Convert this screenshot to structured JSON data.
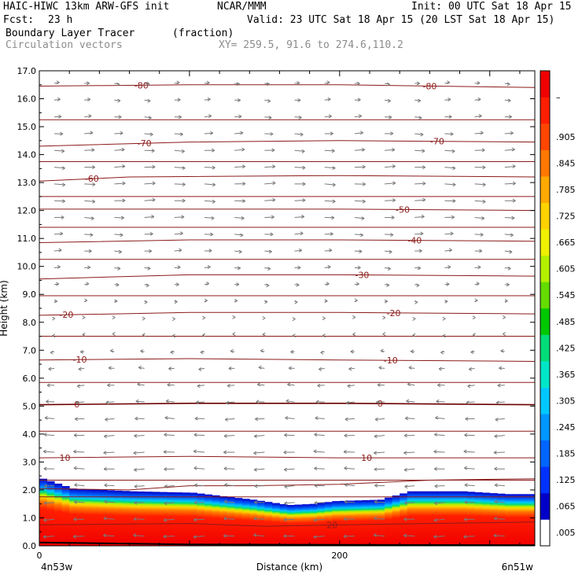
{
  "header": {
    "model": "HAIC-HIWC 13km ARW-GFS init",
    "org": "NCAR/MMM",
    "init": "Init: 00 UTC Sat 18 Apr 15",
    "fcst_label": "Fcst:",
    "fcst_value": "23 h",
    "valid": "Valid: 23 UTC Sat 18 Apr 15 (20 LST Sat 18 Apr 15)",
    "field": "Boundary Layer Tracer",
    "field_units": "(fraction)",
    "overlay": "Circulation vectors",
    "xy": "XY= 259.5, 91.6 to 274.6,110.2"
  },
  "chart_data": {
    "type": "heatmap",
    "xlabel": "Distance (km)",
    "ylabel": "Height (km)",
    "xlim": [
      0,
      330
    ],
    "ylim": [
      0,
      17
    ],
    "x_ticks": [
      {
        "value": 0,
        "label": "0"
      },
      {
        "value": 200,
        "label": "200"
      }
    ],
    "y_ticks": [
      "0.0",
      "1.0",
      "2.0",
      "3.0",
      "4.0",
      "5.0",
      "6.0",
      "7.0",
      "8.0",
      "9.0",
      "10.0",
      "11.0",
      "12.0",
      "13.0",
      "14.0",
      "15.0",
      "16.0",
      "17.0"
    ],
    "endpoint_labels": {
      "left": "4n53w",
      "right": "6n51w"
    },
    "colorbar": {
      "labels": [
        ".005",
        ".065",
        ".125",
        ".185",
        ".245",
        ".305",
        ".365",
        ".425",
        ".485",
        ".545",
        ".605",
        ".665",
        ".725",
        ".785",
        ".845",
        ".905",
        "–"
      ],
      "colors": [
        "#ffffff",
        "#0000c8",
        "#0032ff",
        "#0064ff",
        "#0096ff",
        "#00c8ff",
        "#00e6c8",
        "#00dc78",
        "#00c800",
        "#64dc00",
        "#b4f000",
        "#f0f000",
        "#ffd200",
        "#ffaa00",
        "#ff7800",
        "#ff4600",
        "#ff1e00",
        "#f00000"
      ]
    },
    "tracer_top_km": [
      {
        "x": 0,
        "top": 2.4
      },
      {
        "x": 20,
        "top": 2.05
      },
      {
        "x": 60,
        "top": 1.95
      },
      {
        "x": 100,
        "top": 1.9
      },
      {
        "x": 140,
        "top": 1.65
      },
      {
        "x": 165,
        "top": 1.45
      },
      {
        "x": 185,
        "top": 1.5
      },
      {
        "x": 200,
        "top": 1.6
      },
      {
        "x": 230,
        "top": 1.65
      },
      {
        "x": 250,
        "top": 1.95
      },
      {
        "x": 280,
        "top": 1.95
      },
      {
        "x": 310,
        "top": 1.85
      },
      {
        "x": 330,
        "top": 1.85
      }
    ],
    "isotherms_c": [
      {
        "value": 20,
        "label": "20",
        "points": [
          [
            0,
            0.75
          ],
          [
            100,
            0.8
          ],
          [
            150,
            0.7
          ],
          [
            200,
            0.75
          ],
          [
            260,
            0.8
          ],
          [
            330,
            0.85
          ]
        ],
        "labels_at": [
          195
        ]
      },
      {
        "value": 10,
        "label": "10",
        "points": [
          [
            0,
            3.15
          ],
          [
            100,
            3.2
          ],
          [
            200,
            3.15
          ],
          [
            330,
            3.15
          ]
        ],
        "labels_at": [
          17,
          218
        ]
      },
      {
        "value": 0,
        "label": "0",
        "points": [
          [
            0,
            5.05
          ],
          [
            100,
            5.1
          ],
          [
            200,
            5.1
          ],
          [
            330,
            5.05
          ]
        ],
        "labels_at": [
          25,
          227
        ]
      },
      {
        "value": -10,
        "label": "-10",
        "points": [
          [
            0,
            6.65
          ],
          [
            100,
            6.7
          ],
          [
            200,
            6.65
          ],
          [
            330,
            6.6
          ]
        ],
        "labels_at": [
          27,
          234
        ]
      },
      {
        "value": -20,
        "label": "-20",
        "points": [
          [
            0,
            8.25
          ],
          [
            100,
            8.35
          ],
          [
            200,
            8.35
          ],
          [
            330,
            8.3
          ]
        ],
        "labels_at": [
          18,
          236
        ]
      },
      {
        "value": -30,
        "label": "-30",
        "points": [
          [
            0,
            9.55
          ],
          [
            100,
            9.7
          ],
          [
            200,
            9.7
          ],
          [
            330,
            9.65
          ]
        ],
        "labels_at": [
          215
        ]
      },
      {
        "value": -40,
        "label": "-40",
        "points": [
          [
            0,
            10.85
          ],
          [
            100,
            10.95
          ],
          [
            200,
            10.95
          ],
          [
            330,
            10.9
          ]
        ],
        "labels_at": [
          250
        ]
      },
      {
        "value": -50,
        "label": "-50",
        "points": [
          [
            0,
            12.05
          ],
          [
            100,
            12.05
          ],
          [
            200,
            12.05
          ],
          [
            330,
            12.0
          ]
        ],
        "labels_at": [
          242
        ]
      },
      {
        "value": -60,
        "label": "-60",
        "points": [
          [
            0,
            13.05
          ],
          [
            60,
            13.2
          ],
          [
            200,
            13.25
          ],
          [
            330,
            13.2
          ]
        ],
        "labels_at": [
          35
        ]
      },
      {
        "value": -70,
        "label": "-70",
        "points": [
          [
            0,
            14.3
          ],
          [
            100,
            14.45
          ],
          [
            200,
            14.5
          ],
          [
            330,
            14.45
          ]
        ],
        "labels_at": [
          70,
          265
        ]
      },
      {
        "value": -80,
        "label": "-80",
        "points": [
          [
            0,
            16.45
          ],
          [
            100,
            16.5
          ],
          [
            200,
            16.5
          ],
          [
            330,
            16.4
          ]
        ],
        "labels_at": [
          68,
          260
        ]
      }
    ],
    "unlabeled_contours_km": [
      1.75,
      2.35,
      4.1,
      5.85,
      7.5,
      8.95,
      10.25,
      11.4,
      12.5,
      13.75,
      15.25
    ],
    "wind_profile": [
      {
        "z": 0.5,
        "u": -1.0
      },
      {
        "z": 2.0,
        "u": -0.9
      },
      {
        "z": 3.5,
        "u": -1.0
      },
      {
        "z": 5.0,
        "u": -0.8
      },
      {
        "z": 6.5,
        "u": -0.5
      },
      {
        "z": 7.5,
        "u": -0.2
      },
      {
        "z": 8.5,
        "u": 0.2
      },
      {
        "z": 9.5,
        "u": 0.45
      },
      {
        "z": 11.0,
        "u": 0.75
      },
      {
        "z": 12.5,
        "u": 1.0
      },
      {
        "z": 14.0,
        "u": 0.95
      },
      {
        "z": 15.5,
        "u": 0.6
      },
      {
        "z": 17.0,
        "u": 0.4
      }
    ]
  },
  "colors": {
    "isotherm": "#8b1a1a",
    "vector": "#7a7a7a",
    "terrain": "#000000"
  }
}
